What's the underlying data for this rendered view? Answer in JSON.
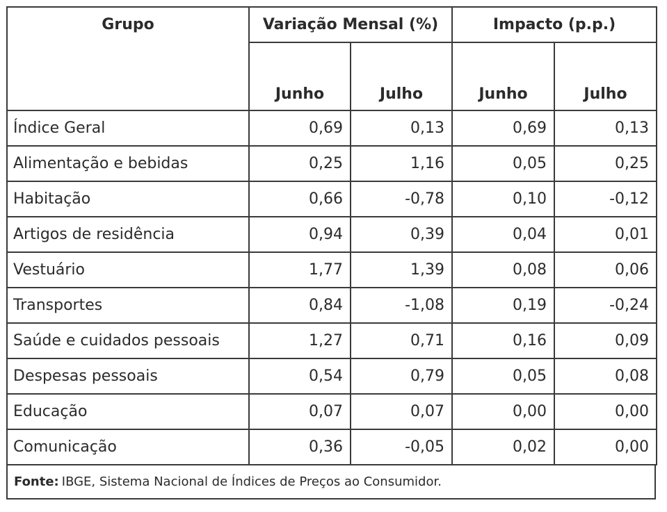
{
  "header": {
    "grupo": "Grupo",
    "variacao": "Variação Mensal (%)",
    "impacto": "Impacto (p.p.)",
    "sub": [
      "Junho",
      "Julho",
      "Junho",
      "Julho"
    ]
  },
  "rows": [
    {
      "grupo": "Índice Geral",
      "var_jun": "0,69",
      "var_jul": "0,13",
      "imp_jun": "0,69",
      "imp_jul": "0,13"
    },
    {
      "grupo": "Alimentação e bebidas",
      "var_jun": "0,25",
      "var_jul": "1,16",
      "imp_jun": "0,05",
      "imp_jul": "0,25"
    },
    {
      "grupo": "Habitação",
      "var_jun": "0,66",
      "var_jul": "-0,78",
      "imp_jun": "0,10",
      "imp_jul": "-0,12"
    },
    {
      "grupo": "Artigos de residência",
      "var_jun": "0,94",
      "var_jul": "0,39",
      "imp_jun": "0,04",
      "imp_jul": "0,01"
    },
    {
      "grupo": "Vestuário",
      "var_jun": "1,77",
      "var_jul": "1,39",
      "imp_jun": "0,08",
      "imp_jul": "0,06"
    },
    {
      "grupo": "Transportes",
      "var_jun": "0,84",
      "var_jul": "-1,08",
      "imp_jun": "0,19",
      "imp_jul": "-0,24"
    },
    {
      "grupo": "Saúde e cuidados pessoais",
      "var_jun": "1,27",
      "var_jul": "0,71",
      "imp_jun": "0,16",
      "imp_jul": "0,09"
    },
    {
      "grupo": "Despesas pessoais",
      "var_jun": "0,54",
      "var_jul": "0,79",
      "imp_jun": "0,05",
      "imp_jul": "0,08"
    },
    {
      "grupo": "Educação",
      "var_jun": "0,07",
      "var_jul": "0,07",
      "imp_jun": "0,00",
      "imp_jul": "0,00"
    },
    {
      "grupo": "Comunicação",
      "var_jun": "0,36",
      "var_jul": "-0,05",
      "imp_jun": "0,02",
      "imp_jul": "0,00"
    }
  ],
  "source": {
    "label": "Fonte:",
    "text": "IBGE, Sistema Nacional de Índices de Preços ao Consumidor."
  }
}
